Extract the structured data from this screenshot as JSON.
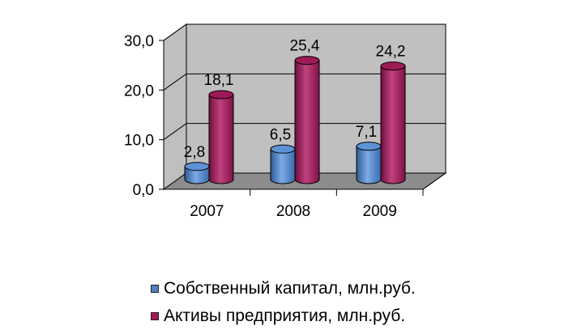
{
  "chart_data": {
    "type": "bar",
    "style": "3d-cylinder",
    "categories": [
      "2007",
      "2008",
      "2009"
    ],
    "series": [
      {
        "name": "Собственный капитал, млн.руб.",
        "values": [
          2.8,
          6.5,
          7.1
        ],
        "labels": [
          "2,8",
          "6,5",
          "7,1"
        ],
        "color": "#4F81BD"
      },
      {
        "name": "Активы предприятия, млн.руб.",
        "values": [
          18.1,
          25.4,
          24.2
        ],
        "labels": [
          "18,1",
          "25,4",
          "24,2"
        ],
        "color": "#A5195B"
      }
    ],
    "y_ticks": [
      "0,0",
      "10,0",
      "20,0",
      "30,0"
    ],
    "ylim": [
      0,
      30
    ],
    "grid": true,
    "legend_position": "bottom",
    "title": "",
    "xlabel": "",
    "ylabel": ""
  }
}
